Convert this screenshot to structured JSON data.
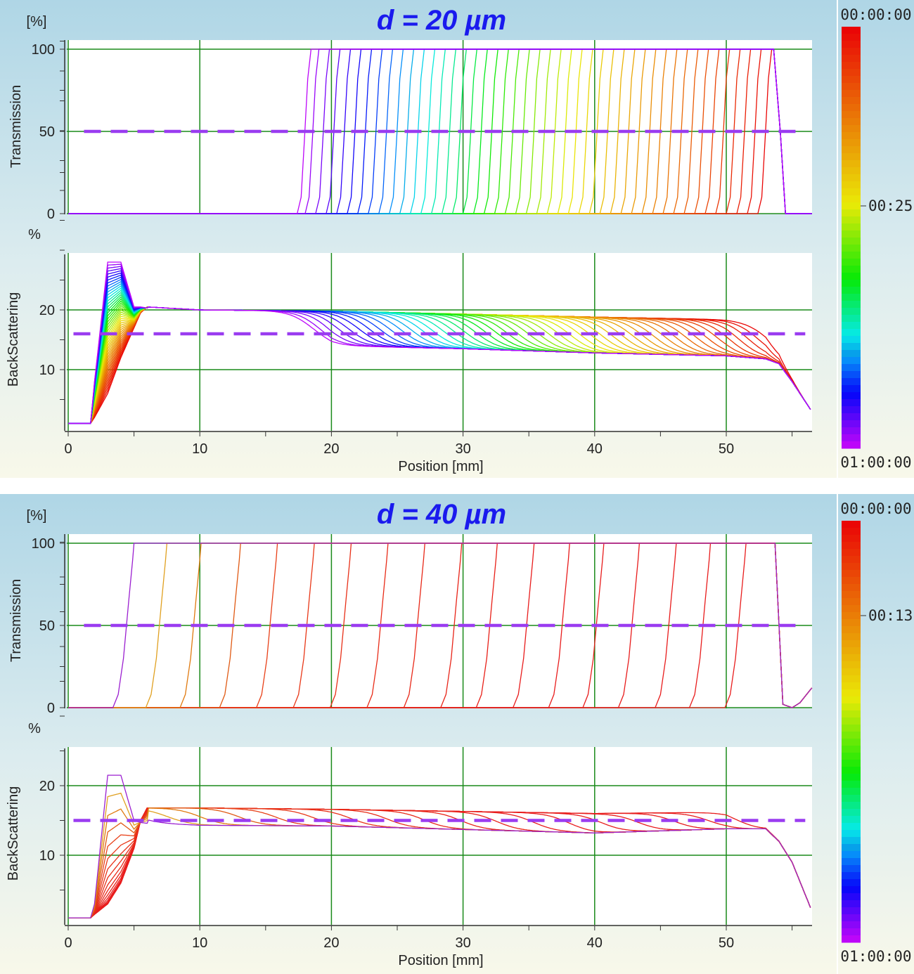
{
  "chart_data": [
    {
      "type": "line",
      "title": "d = 20 µm",
      "unit_label_top": "[%]",
      "unit_label_bottom": "%",
      "xlabel": "Position [mm]",
      "xlim": [
        0,
        56.5
      ],
      "x_ticks": [
        "0",
        "10",
        "20",
        "30",
        "40",
        "50"
      ],
      "grid": true,
      "transmission": {
        "ylabel": "Transmission",
        "ylim": [
          0,
          100
        ],
        "y_ticks": [
          "0",
          "50",
          "100"
        ],
        "reference_line": 50,
        "front_positions_earliest_to_latest": [
          53.3,
          52.5,
          51.7,
          50.9,
          50.1,
          49.3,
          48.5,
          47.7,
          46.9,
          46.1,
          45.3,
          44.5,
          43.7,
          42.9,
          42.1,
          41.3,
          40.5,
          39.7,
          38.9,
          38.1,
          37.3,
          36.5,
          35.7,
          34.9,
          34.1,
          33.3,
          32.5,
          31.7,
          30.9,
          30.1,
          29.3,
          28.5,
          27.7,
          26.9,
          26.1,
          25.3,
          24.5,
          23.7,
          22.9,
          22.1,
          21.3,
          20.5,
          19.7,
          18.9,
          18.3
        ]
      },
      "backscattering": {
        "ylabel": "BackScattering",
        "ylim": [
          0,
          29.5
        ],
        "y_ticks": [
          "10",
          "20"
        ],
        "reference_line": 16,
        "x": [
          0,
          1.7,
          2,
          3,
          4,
          5,
          5.5,
          6,
          10,
          20,
          30,
          40,
          50,
          53,
          54,
          55,
          56.5
        ],
        "earliest": [
          1,
          1,
          2,
          6,
          12,
          17,
          19.5,
          20.5,
          20,
          19.8,
          19.3,
          18.8,
          18.4,
          18,
          16,
          11,
          3
        ],
        "latest": [
          1,
          1,
          8,
          28,
          28,
          20.5,
          20.5,
          20.3,
          19.5,
          14,
          13.5,
          12.8,
          12.3,
          11.8,
          11,
          8,
          3
        ]
      },
      "colorbar": {
        "top": "00:00:00",
        "middle": "00:25:",
        "bottom": "01:00:00"
      }
    },
    {
      "type": "line",
      "title": "d = 40 µm",
      "unit_label_top": "[%]",
      "unit_label_bottom": "%",
      "xlabel": "Position [mm]",
      "xlim": [
        0,
        56.5
      ],
      "x_ticks": [
        "0",
        "10",
        "20",
        "30",
        "40",
        "50"
      ],
      "grid": true,
      "transmission": {
        "ylabel": "Transmission",
        "ylim": [
          0,
          100
        ],
        "y_ticks": [
          "0",
          "50",
          "100"
        ],
        "reference_line": 50,
        "front_positions_earliest_to_latest": [
          51.4,
          48.7,
          46.1,
          43.3,
          40.6,
          38.0,
          35.3,
          32.5,
          29.8,
          27.0,
          24.2,
          21.4,
          18.6,
          15.8,
          13.0,
          10.0,
          7.4,
          4.9
        ],
        "colors": [
          "#e81c1c",
          "#e81c1c",
          "#e81c1c",
          "#e81c1c",
          "#e81c1c",
          "#e81c1c",
          "#e81c1c",
          "#e82018",
          "#e82418",
          "#e82818",
          "#e82c18",
          "#e83018",
          "#e83818",
          "#e84018",
          "#e05a14",
          "#e07a10",
          "#e0a020",
          "#9b1fd0"
        ]
      },
      "backscattering": {
        "ylabel": "BackScattering",
        "ylim": [
          0,
          25.5
        ],
        "y_ticks": [
          "10",
          "20"
        ],
        "reference_line": 15,
        "x": [
          0,
          1.7,
          2,
          3,
          4,
          5,
          5.5,
          6,
          10,
          20,
          30,
          40,
          50,
          53,
          54,
          55,
          56.5
        ],
        "earliest": [
          1,
          1,
          1.5,
          3,
          6,
          11,
          15,
          16.8,
          16.8,
          16.6,
          16.3,
          16,
          16.2,
          14.5,
          13,
          10,
          2
        ],
        "latest": [
          1,
          1,
          3,
          21.5,
          21.5,
          15,
          14.7,
          14.6,
          14.3,
          14.2,
          13.7,
          13.2,
          13.8,
          13.8,
          12,
          9,
          2
        ]
      },
      "colorbar": {
        "top": "00:00:00",
        "middle": "00:13:",
        "bottom": "01:00:00"
      }
    }
  ]
}
